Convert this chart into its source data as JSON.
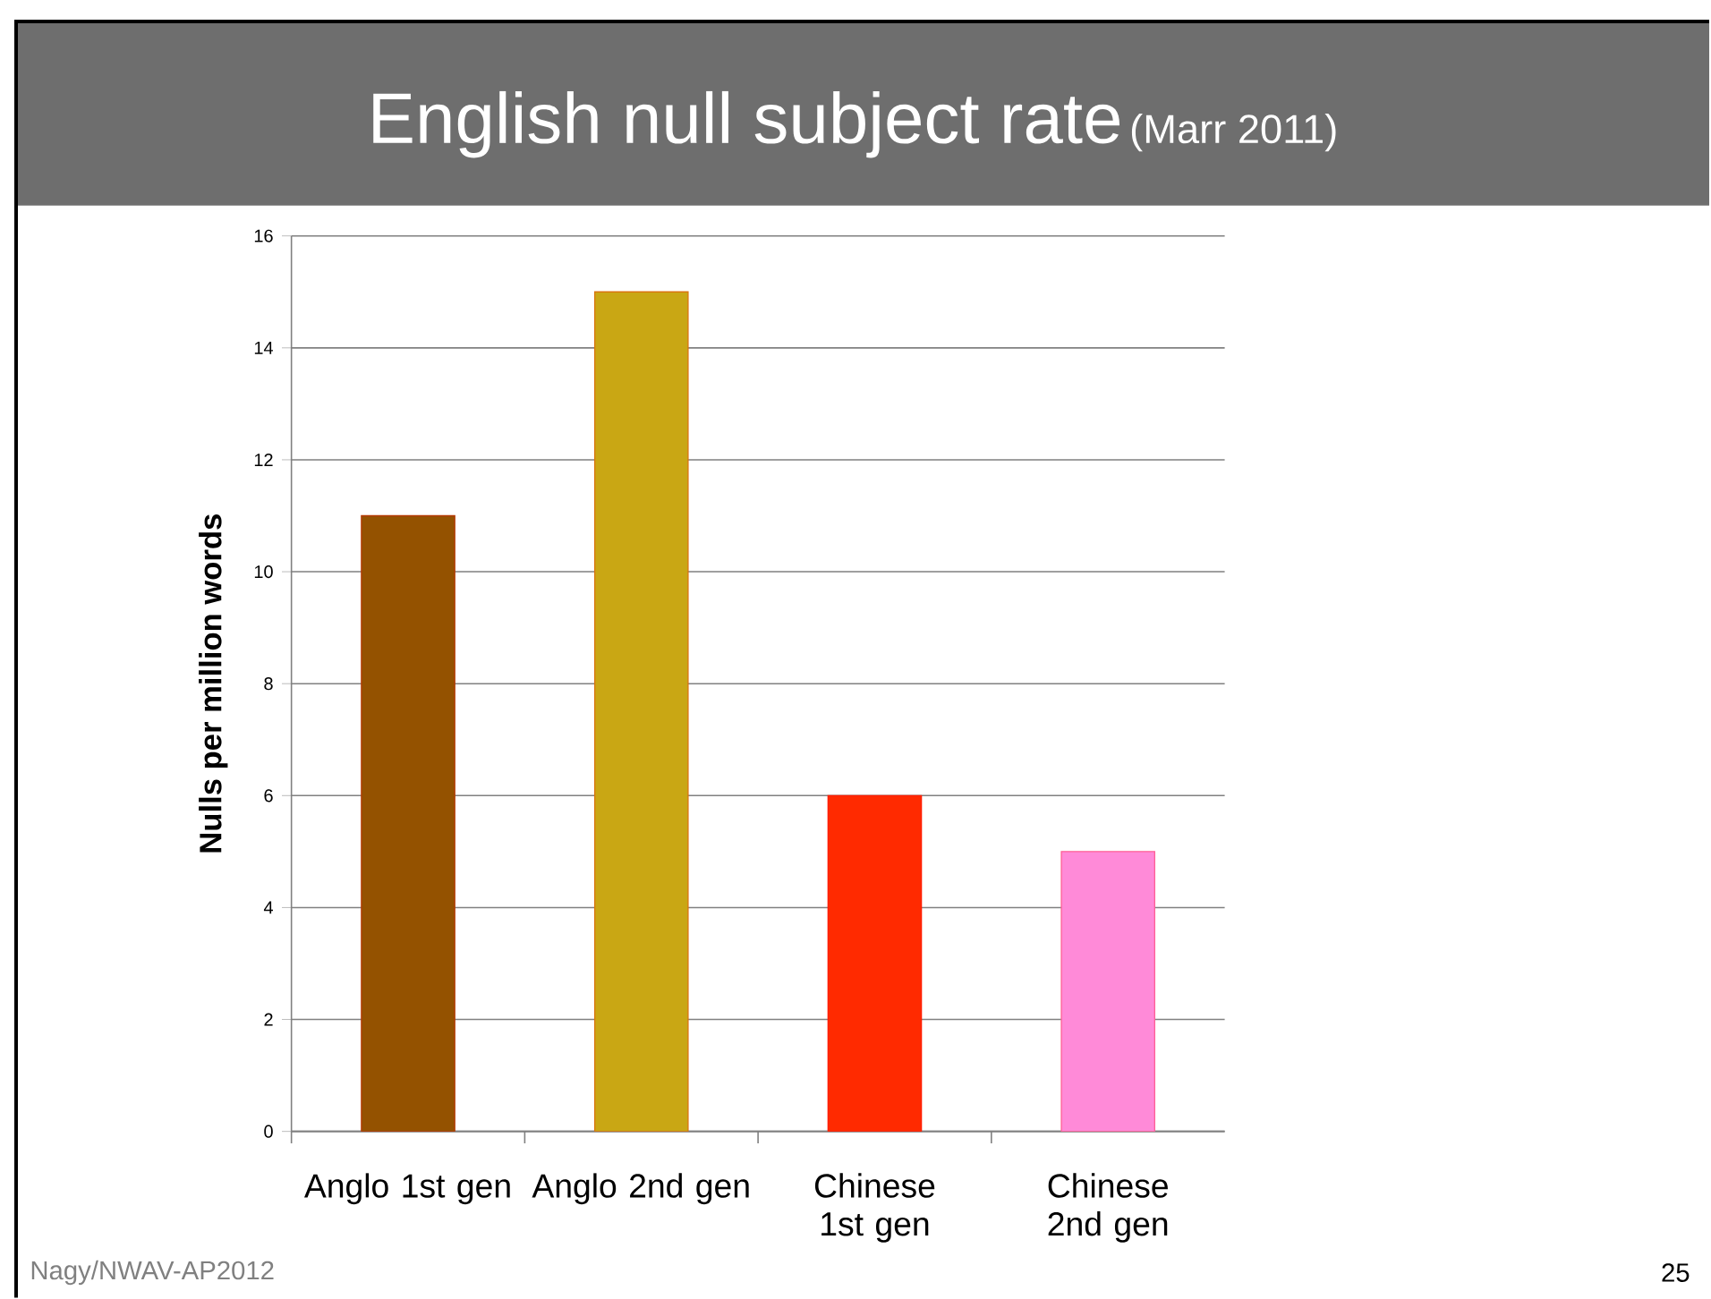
{
  "chart_data": {
    "type": "bar",
    "title": "English null subject rate",
    "subtitle": "(Marr 2011)",
    "ylabel": "Nulls per million words",
    "categories": [
      "Anglo 1st gen",
      "Anglo 2nd gen",
      "Chinese 1st gen",
      "Chinese 2nd gen"
    ],
    "values": [
      11,
      15,
      6,
      5
    ],
    "colors": [
      "#945200",
      "#c9a714",
      "#ff2a00",
      "#ff8ad8"
    ],
    "ylim": [
      0,
      16
    ],
    "yticks": [
      0,
      2,
      4,
      6,
      8,
      10,
      12,
      14,
      16
    ],
    "grid": "y",
    "annotations": [
      "Nagy/NWAV-AP2012",
      "25"
    ]
  }
}
